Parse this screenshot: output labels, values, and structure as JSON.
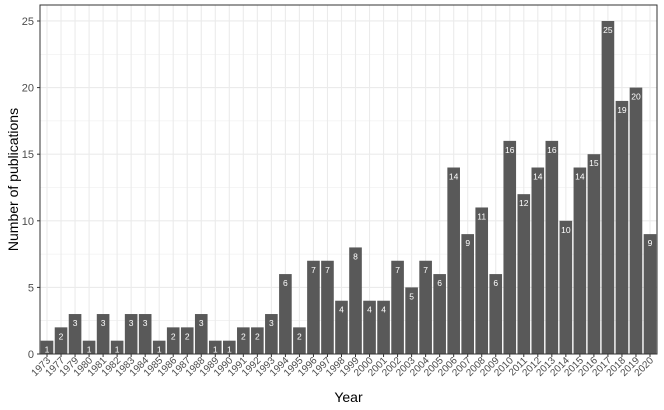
{
  "chart_data": {
    "type": "bar",
    "categories": [
      "1973",
      "1977",
      "1979",
      "1980",
      "1981",
      "1982",
      "1983",
      "1984",
      "1985",
      "1986",
      "1987",
      "1988",
      "1989",
      "1990",
      "1991",
      "1992",
      "1993",
      "1994",
      "1995",
      "1996",
      "1997",
      "1998",
      "1999",
      "2000",
      "2001",
      "2002",
      "2003",
      "2004",
      "2005",
      "2006",
      "2007",
      "2008",
      "2009",
      "2010",
      "2011",
      "2012",
      "2013",
      "2014",
      "2015",
      "2016",
      "2017",
      "2018",
      "2019",
      "2020"
    ],
    "values": [
      1,
      2,
      3,
      1,
      3,
      1,
      3,
      3,
      1,
      2,
      2,
      3,
      1,
      1,
      2,
      2,
      3,
      6,
      2,
      7,
      7,
      4,
      8,
      4,
      4,
      7,
      5,
      7,
      6,
      14,
      9,
      11,
      6,
      16,
      12,
      14,
      16,
      10,
      14,
      15,
      25,
      19,
      20,
      9
    ],
    "title": "",
    "xlabel": "Year",
    "ylabel": "Number of publications",
    "ylim": [
      0,
      26.2
    ],
    "yticks": [
      0,
      5,
      10,
      15,
      20,
      25
    ],
    "grid": true,
    "bar_color": "#595959",
    "grid_color": "#ebebeb",
    "label_color": "#ffffff"
  }
}
